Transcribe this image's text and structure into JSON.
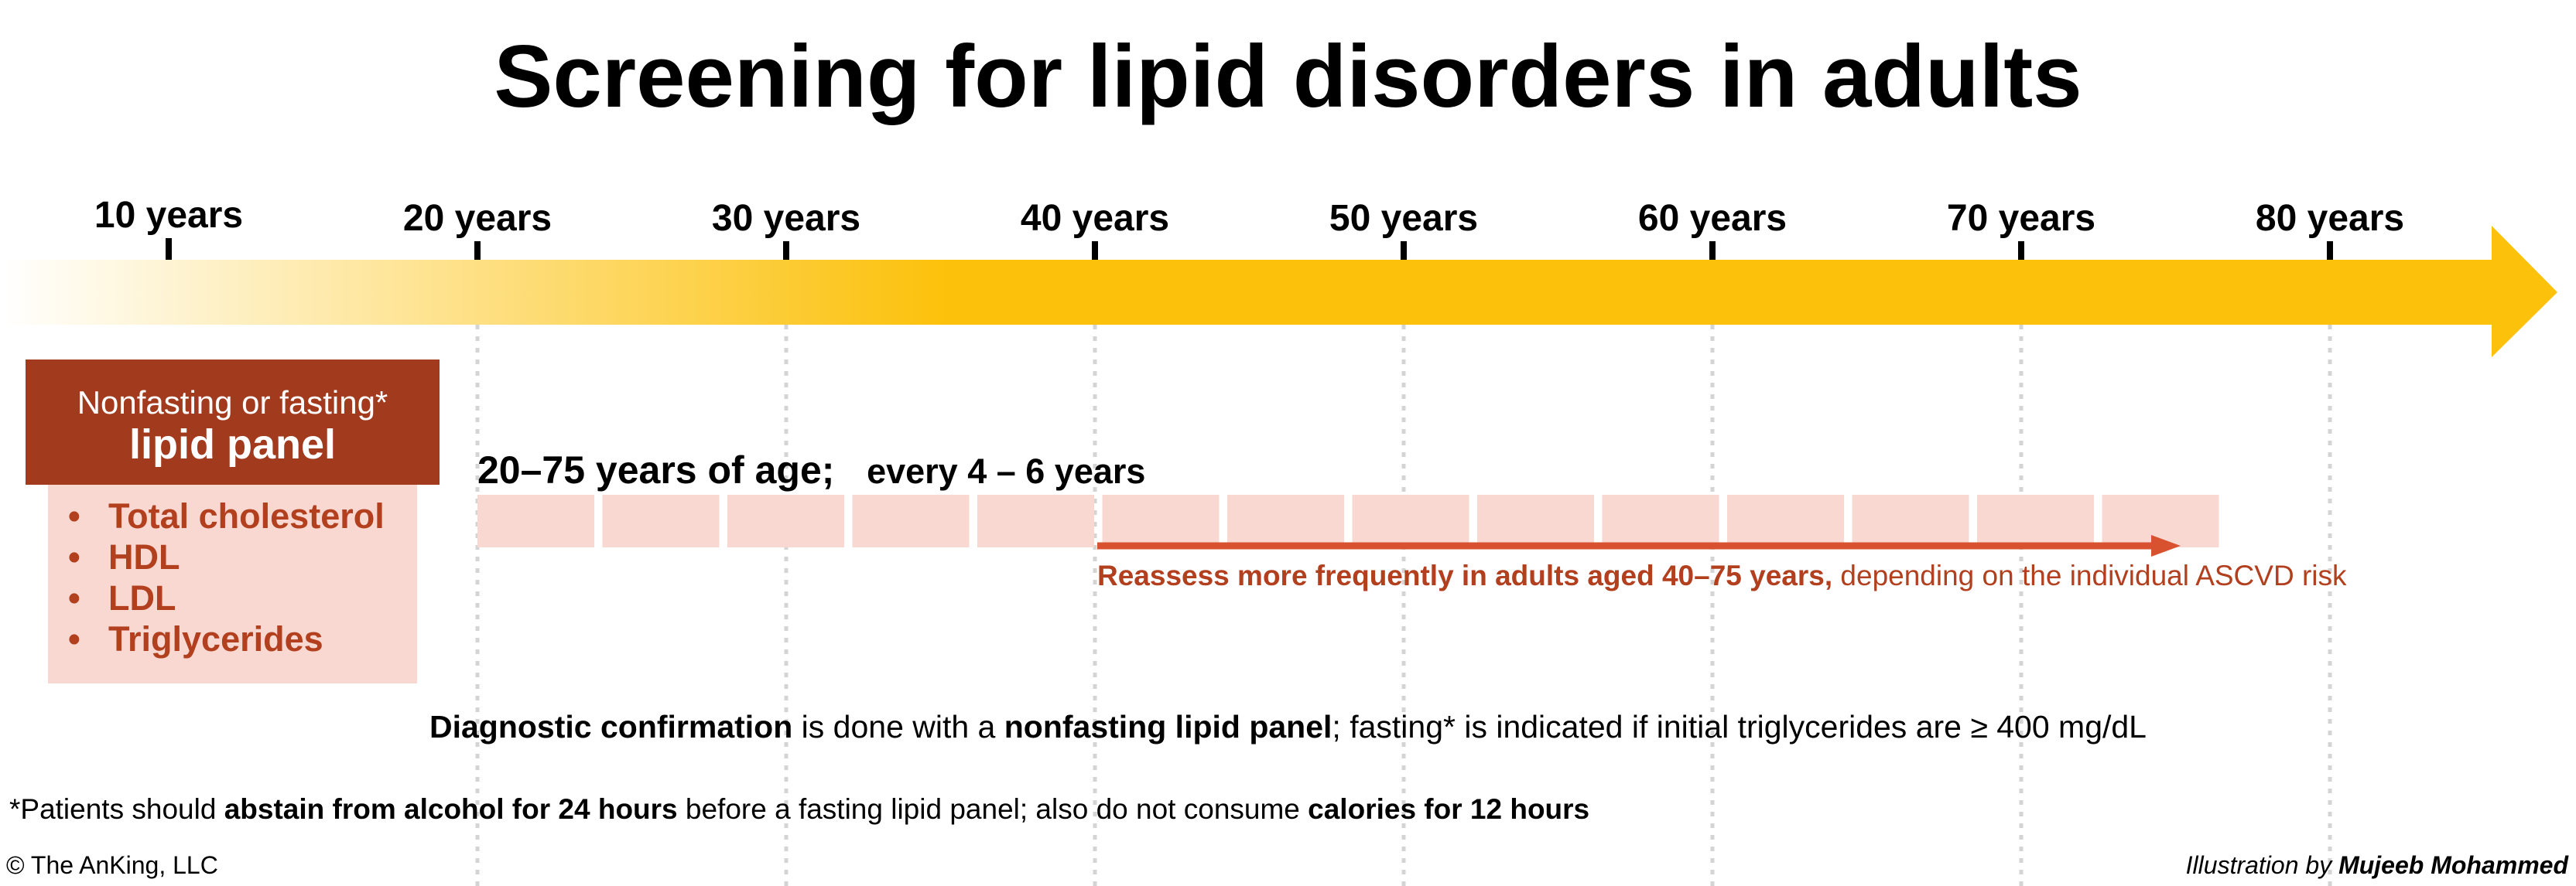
{
  "title": "Screening for lipid disorders in adults",
  "timeline": {
    "ages": [
      "10 years",
      "20 years",
      "30 years",
      "40 years",
      "50 years",
      "60 years",
      "70 years",
      "80 years"
    ],
    "colors": {
      "arrow": "#FCC10A",
      "fade_start": "#FFFFFF"
    }
  },
  "panel": {
    "subtitle": "Nonfasting or fasting*",
    "title": "lipid panel",
    "items": [
      "Total cholesterol",
      "HDL",
      "LDL",
      "Triglycerides"
    ],
    "colors": {
      "header_bg": "#A23A1E",
      "list_bg": "#F8D8D1",
      "list_text": "#B23F1E"
    }
  },
  "screening": {
    "range_label": "20–75 years of age;",
    "frequency": "every 4 – 6 years",
    "interval_count": 14,
    "colors": {
      "block": "#F8D8D1"
    }
  },
  "reassess": {
    "bold": "Reassess more frequently in adults aged 40–75 years,",
    "normal": " depending on the individual ASCVD risk",
    "colors": {
      "arrow": "#D9522F"
    }
  },
  "diagnostic": {
    "p1_bold": "Diagnostic confirmation",
    "p2": " is done with a ",
    "p3_bold": "nonfasting lipid panel",
    "p4": "; fasting* is indicated if initial triglycerides are ≥ 400 mg/dL"
  },
  "footnote": {
    "p1": "*Patients should ",
    "p2_bold": "abstain from alcohol for 24 hours",
    "p3": " before a fasting lipid panel; also do not consume ",
    "p4_bold": "calories for 12 hours"
  },
  "copyright": "© The AnKing, LLC",
  "credit": {
    "prefix": "Illustration by ",
    "name": "Mujeeb Mohammed"
  }
}
